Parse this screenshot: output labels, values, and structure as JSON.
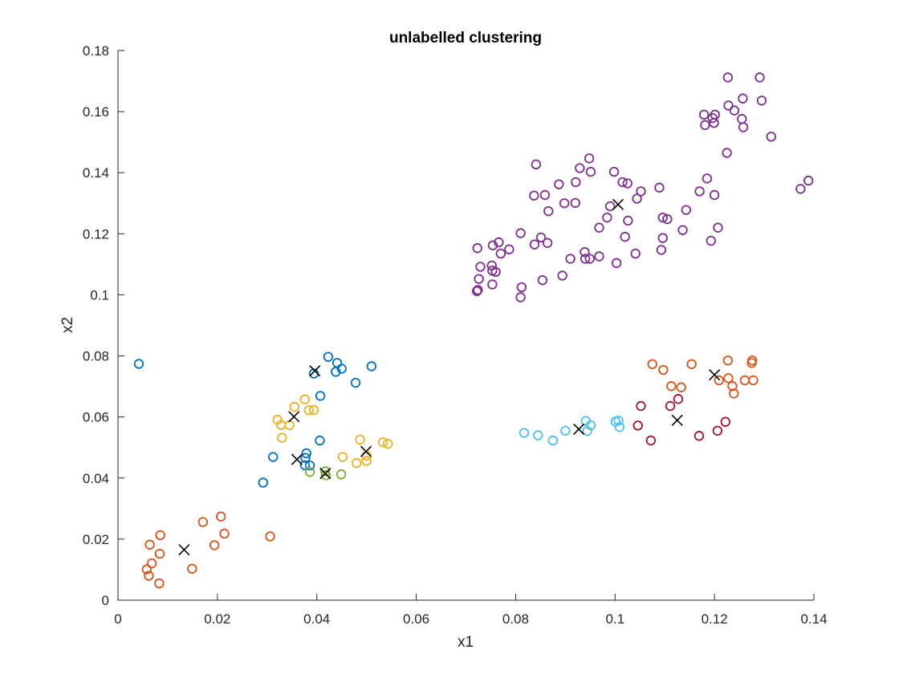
{
  "chart_data": {
    "type": "scatter",
    "title": "unlabelled clustering",
    "xlabel": "x1",
    "ylabel": "x2",
    "xlim": [
      0,
      0.14
    ],
    "ylim": [
      0,
      0.18
    ],
    "xticks": [
      "0",
      "0.02",
      "0.04",
      "0.06",
      "0.08",
      "0.1",
      "0.12",
      "0.14"
    ],
    "yticks": [
      "0",
      "0.02",
      "0.04",
      "0.06",
      "0.08",
      "0.1",
      "0.12",
      "0.14",
      "0.16",
      "0.18"
    ],
    "grid": false,
    "legend": "none",
    "series": [
      {
        "color": "#7E2F8E",
        "points": [
          [
            0.1227,
            0.1712
          ],
          [
            0.1291,
            0.1712
          ],
          [
            0.1295,
            0.1636
          ],
          [
            0.1257,
            0.1643
          ],
          [
            0.1228,
            0.162
          ],
          [
            0.124,
            0.1604
          ],
          [
            0.1179,
            0.159
          ],
          [
            0.1201,
            0.159
          ],
          [
            0.1196,
            0.1579
          ],
          [
            0.1255,
            0.1576
          ],
          [
            0.1181,
            0.1556
          ],
          [
            0.1199,
            0.1563
          ],
          [
            0.1258,
            0.1549
          ],
          [
            0.1314,
            0.1518
          ],
          [
            0.1225,
            0.1465
          ],
          [
            0.0948,
            0.1447
          ],
          [
            0.0841,
            0.1427
          ],
          [
            0.0929,
            0.1415
          ],
          [
            0.0951,
            0.1403
          ],
          [
            0.0998,
            0.1403
          ],
          [
            0.1185,
            0.1381
          ],
          [
            0.0921,
            0.1369
          ],
          [
            0.1015,
            0.1369
          ],
          [
            0.1025,
            0.1365
          ],
          [
            0.0887,
            0.1362
          ],
          [
            0.1089,
            0.1351
          ],
          [
            0.1373,
            0.1347
          ],
          [
            0.1389,
            0.1374
          ],
          [
            0.1052,
            0.1339
          ],
          [
            0.117,
            0.1339
          ],
          [
            0.0837,
            0.1325
          ],
          [
            0.0859,
            0.1327
          ],
          [
            0.12,
            0.1327
          ],
          [
            0.1044,
            0.1315
          ],
          [
            0.0898,
            0.13
          ],
          [
            0.092,
            0.1301
          ],
          [
            0.099,
            0.129
          ],
          [
            0.0866,
            0.1274
          ],
          [
            0.1143,
            0.1278
          ],
          [
            0.0984,
            0.1253
          ],
          [
            0.1096,
            0.1253
          ],
          [
            0.1105,
            0.1248
          ],
          [
            0.1026,
            0.1243
          ],
          [
            0.0968,
            0.122
          ],
          [
            0.1207,
            0.122
          ],
          [
            0.1136,
            0.1212
          ],
          [
            0.081,
            0.1202
          ],
          [
            0.102,
            0.119
          ],
          [
            0.1096,
            0.1186
          ],
          [
            0.0851,
            0.1188
          ],
          [
            0.1193,
            0.1177
          ],
          [
            0.0766,
            0.1172
          ],
          [
            0.0838,
            0.1165
          ],
          [
            0.0864,
            0.117
          ],
          [
            0.0754,
            0.1162
          ],
          [
            0.0723,
            0.1153
          ],
          [
            0.0787,
            0.1149
          ],
          [
            0.0939,
            0.114
          ],
          [
            0.077,
            0.1135
          ],
          [
            0.1041,
            0.1135
          ],
          [
            0.1093,
            0.1147
          ],
          [
            0.091,
            0.1118
          ],
          [
            0.094,
            0.1118
          ],
          [
            0.0949,
            0.1118
          ],
          [
            0.0968,
            0.1126
          ],
          [
            0.1003,
            0.1104
          ],
          [
            0.0752,
            0.1096
          ],
          [
            0.0729,
            0.1092
          ],
          [
            0.0753,
            0.1079
          ],
          [
            0.076,
            0.1075
          ],
          [
            0.0726,
            0.1052
          ],
          [
            0.0854,
            0.1048
          ],
          [
            0.0894,
            0.1063
          ],
          [
            0.0753,
            0.1034
          ],
          [
            0.0812,
            0.1025
          ],
          [
            0.0724,
            0.1016
          ],
          [
            0.0722,
            0.1012
          ],
          [
            0.081,
            0.0992
          ]
        ]
      },
      {
        "color": "#D95319",
        "points": [
          [
            0.1227,
            0.0785
          ],
          [
            0.1276,
            0.0785
          ],
          [
            0.1075,
            0.0773
          ],
          [
            0.1154,
            0.0773
          ],
          [
            0.1097,
            0.0754
          ],
          [
            0.1275,
            0.0777
          ],
          [
            0.1228,
            0.0727
          ],
          [
            0.1209,
            0.072
          ],
          [
            0.1261,
            0.072
          ],
          [
            0.1278,
            0.072
          ],
          [
            0.1113,
            0.0701
          ],
          [
            0.1133,
            0.0697
          ],
          [
            0.1236,
            0.0701
          ],
          [
            0.1239,
            0.0677
          ]
        ]
      },
      {
        "color": "#D95319",
        "points": [
          [
            0.0207,
            0.0274
          ],
          [
            0.0171,
            0.0256
          ],
          [
            0.0214,
            0.0218
          ],
          [
            0.0085,
            0.0213
          ],
          [
            0.0306,
            0.0209
          ],
          [
            0.0064,
            0.0182
          ],
          [
            0.0194,
            0.018
          ],
          [
            0.0084,
            0.0152
          ],
          [
            0.0068,
            0.0121
          ],
          [
            0.0058,
            0.0101
          ],
          [
            0.0149,
            0.0103
          ],
          [
            0.0062,
            0.008
          ],
          [
            0.0083,
            0.0055
          ]
        ]
      },
      {
        "color": "#A2142F",
        "points": [
          [
            0.1127,
            0.0659
          ],
          [
            0.1052,
            0.0636
          ],
          [
            0.1111,
            0.0636
          ],
          [
            0.1046,
            0.0572
          ],
          [
            0.1222,
            0.0584
          ],
          [
            0.1206,
            0.0555
          ],
          [
            0.1072,
            0.0523
          ],
          [
            0.1169,
            0.0538
          ]
        ]
      },
      {
        "color": "#4DBEEE",
        "points": [
          [
            0.0941,
            0.0587
          ],
          [
            0.1001,
            0.0585
          ],
          [
            0.1007,
            0.0588
          ],
          [
            0.0951,
            0.0573
          ],
          [
            0.1009,
            0.0567
          ],
          [
            0.0944,
            0.0554
          ],
          [
            0.09,
            0.0555
          ],
          [
            0.0817,
            0.0548
          ],
          [
            0.0845,
            0.054
          ],
          [
            0.0875,
            0.0523
          ]
        ]
      },
      {
        "color": "#0072BD",
        "points": [
          [
            0.0042,
            0.0774
          ],
          [
            0.0423,
            0.0797
          ],
          [
            0.0441,
            0.0777
          ],
          [
            0.051,
            0.0766
          ],
          [
            0.045,
            0.0758
          ],
          [
            0.0394,
            0.0742
          ],
          [
            0.0438,
            0.0748
          ],
          [
            0.0478,
            0.0712
          ],
          [
            0.0407,
            0.0669
          ],
          [
            0.0406,
            0.0523
          ],
          [
            0.0379,
            0.0481
          ],
          [
            0.0312,
            0.0469
          ],
          [
            0.0377,
            0.0466
          ],
          [
            0.0376,
            0.0442
          ],
          [
            0.0386,
            0.0441
          ],
          [
            0.0292,
            0.0385
          ]
        ]
      },
      {
        "color": "#EDB120",
        "points": [
          [
            0.0376,
            0.0658
          ],
          [
            0.0355,
            0.0633
          ],
          [
            0.0384,
            0.0622
          ],
          [
            0.0394,
            0.0623
          ],
          [
            0.0321,
            0.0591
          ],
          [
            0.0328,
            0.0574
          ],
          [
            0.0345,
            0.0573
          ],
          [
            0.033,
            0.0532
          ],
          [
            0.0487,
            0.0526
          ],
          [
            0.0533,
            0.0517
          ],
          [
            0.0543,
            0.0512
          ],
          [
            0.0452,
            0.0469
          ],
          [
            0.05,
            0.0473
          ],
          [
            0.048,
            0.0449
          ],
          [
            0.05,
            0.0456
          ]
        ]
      },
      {
        "color": "#77AC30",
        "points": [
          [
            0.0417,
            0.0422
          ],
          [
            0.0386,
            0.042
          ],
          [
            0.0418,
            0.0409
          ],
          [
            0.0449,
            0.0412
          ]
        ]
      }
    ],
    "centroids": {
      "color": "#000000",
      "marker": "x",
      "points": [
        [
          0.1006,
          0.1296
        ],
        [
          0.12,
          0.0738
        ],
        [
          0.1125,
          0.0589
        ],
        [
          0.0927,
          0.056
        ],
        [
          0.0396,
          0.0751
        ],
        [
          0.0354,
          0.0601
        ],
        [
          0.0499,
          0.0487
        ],
        [
          0.036,
          0.0461
        ],
        [
          0.0417,
          0.0415
        ],
        [
          0.0133,
          0.0165
        ]
      ]
    }
  }
}
